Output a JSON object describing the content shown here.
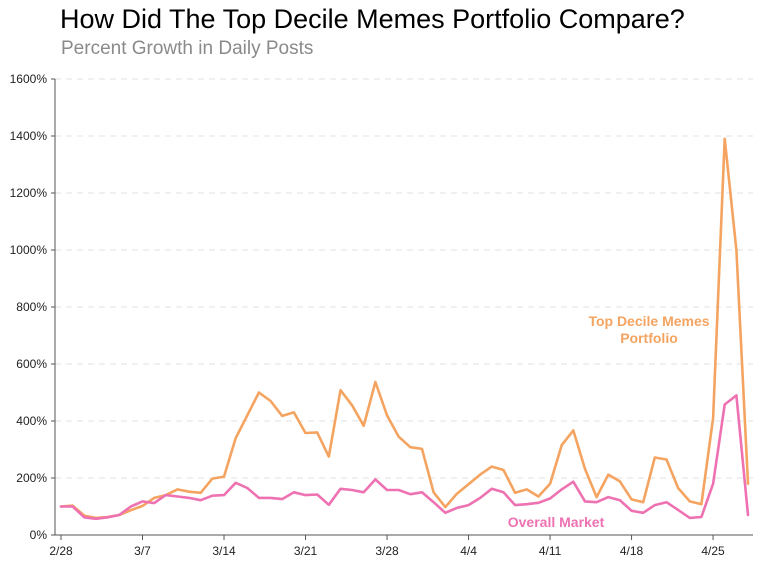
{
  "title": "How Did The Top Decile Memes Portfolio Compare?",
  "subtitle": "Percent Growth in Daily Posts",
  "colors": {
    "top": "#f4a460",
    "market": "#ee72b2",
    "grid": "#e2e2e2",
    "axis": "#555555"
  },
  "chart_data": {
    "type": "line",
    "title": "How Did The Top Decile Memes Portfolio Compare?",
    "subtitle": "Percent Growth in Daily Posts",
    "xlabel": "",
    "ylabel": "",
    "ylim": [
      0,
      1600
    ],
    "yticks": [
      "0%",
      "200%",
      "400%",
      "600%",
      "800%",
      "1000%",
      "1200%",
      "1400%",
      "1600%"
    ],
    "xticks": [
      "2/28",
      "3/7",
      "3/14",
      "3/21",
      "3/28",
      "4/4",
      "4/11",
      "4/18",
      "4/25"
    ],
    "grid": true,
    "annotations": [
      {
        "series": "top",
        "lines": [
          "Top Decile Memes",
          "Portfolio"
        ]
      },
      {
        "series": "market",
        "lines": [
          "Overall Market"
        ]
      }
    ],
    "series": [
      {
        "key": "top",
        "values": [
          100,
          103,
          68,
          60,
          63,
          70,
          87,
          102,
          130,
          140,
          160,
          152,
          148,
          198,
          205,
          340,
          420,
          500,
          470,
          418,
          430,
          358,
          360,
          275,
          508,
          455,
          383,
          537,
          420,
          345,
          308,
          302,
          150,
          98,
          145,
          178,
          212,
          240,
          228,
          148,
          160,
          135,
          180,
          315,
          367,
          232,
          133,
          212,
          188,
          125,
          115,
          272,
          265,
          165,
          118,
          108,
          410,
          1390,
          1000,
          180
        ],
        "color": "#f4a460"
      },
      {
        "key": "market",
        "values": [
          100,
          100,
          62,
          57,
          62,
          70,
          100,
          118,
          112,
          140,
          135,
          130,
          122,
          138,
          140,
          183,
          165,
          130,
          130,
          126,
          150,
          140,
          142,
          106,
          162,
          158,
          150,
          195,
          158,
          158,
          143,
          150,
          115,
          78,
          95,
          105,
          130,
          162,
          150,
          105,
          108,
          113,
          128,
          160,
          187,
          118,
          115,
          133,
          122,
          85,
          78,
          105,
          115,
          88,
          60,
          63,
          180,
          458,
          490,
          70
        ],
        "color": "#ee72b2"
      }
    ]
  }
}
